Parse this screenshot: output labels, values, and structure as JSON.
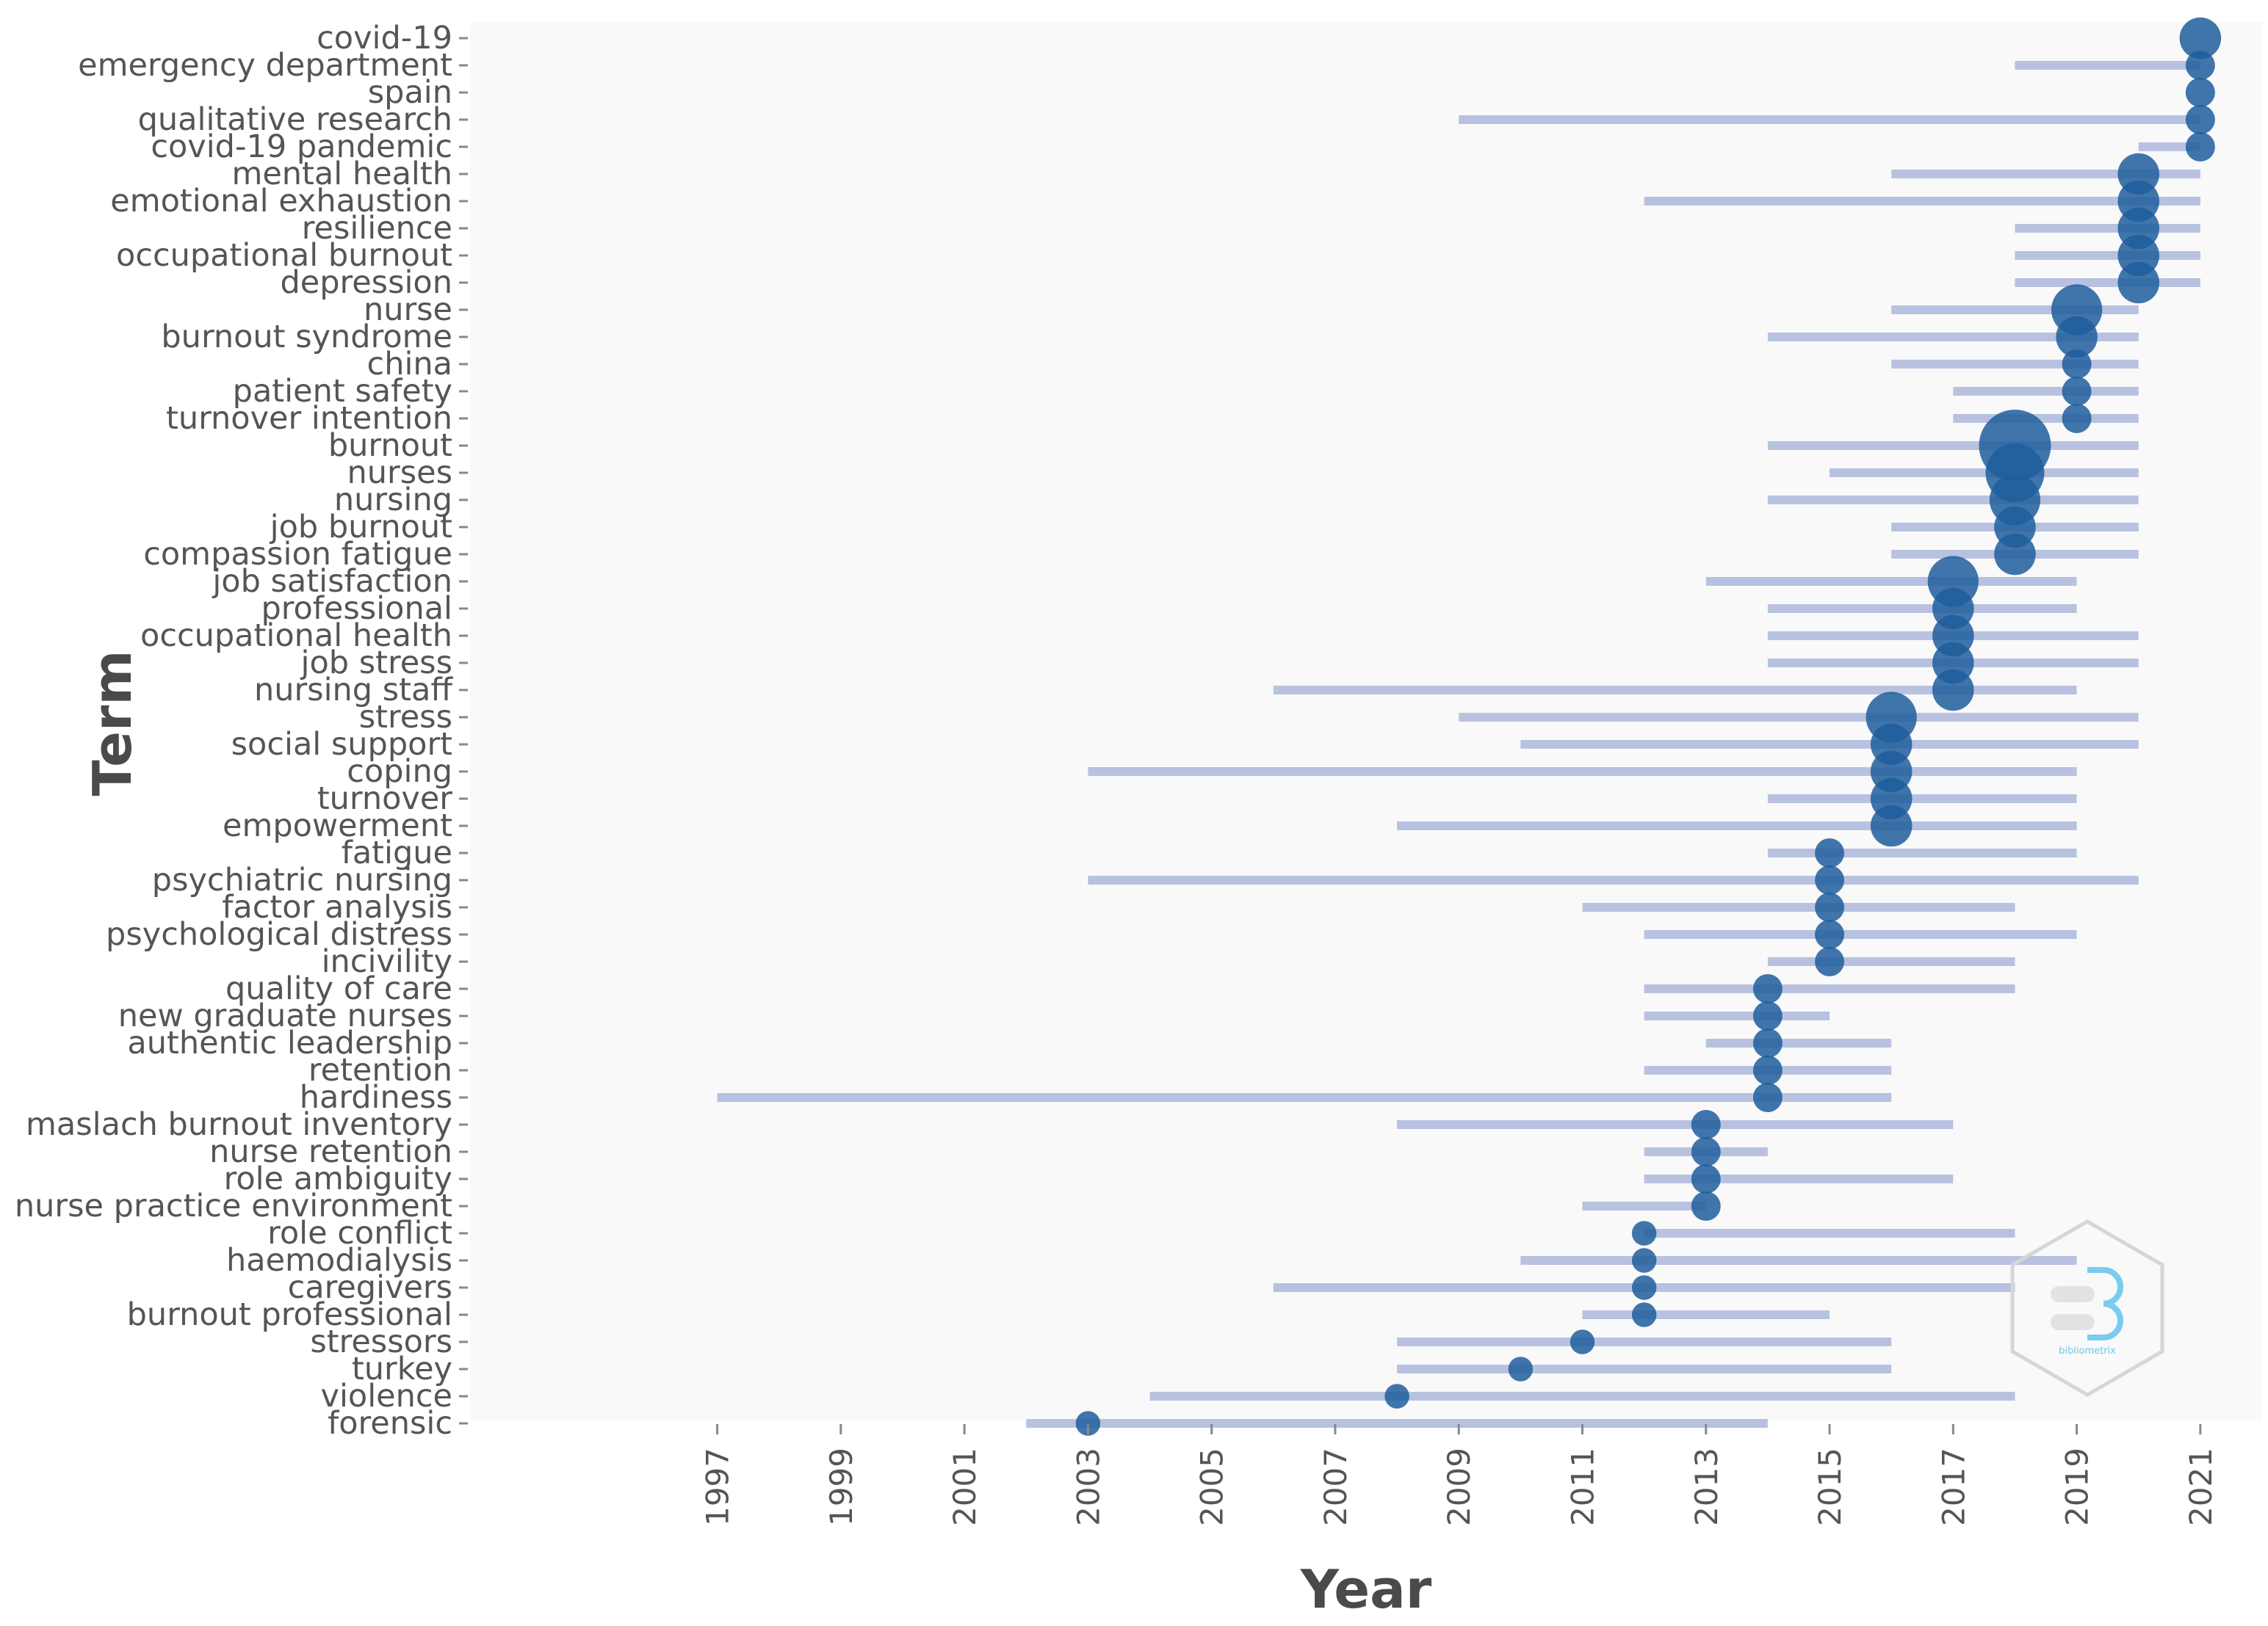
{
  "chart_data": {
    "type": "scatter",
    "title": "",
    "xlabel": "Year",
    "ylabel": "Term",
    "xlim": [
      1993,
      2022
    ],
    "x_ticks": [
      1997,
      1999,
      2001,
      2003,
      2005,
      2007,
      2009,
      2011,
      2013,
      2015,
      2017,
      2019,
      2021
    ],
    "grid": false,
    "legend": "none",
    "colors": {
      "bar": "#b8c2e0",
      "dot": "#1f5e9c",
      "panel": "#f9f9f9",
      "tick": "#888888"
    },
    "terms": [
      {
        "term": "covid-19",
        "start": 2021,
        "end": 2021,
        "peak": 2021,
        "size": 2
      },
      {
        "term": "emergency department",
        "start": 2018,
        "end": 2021,
        "peak": 2021,
        "size": 1
      },
      {
        "term": "spain",
        "start": 2021,
        "end": 2021,
        "peak": 2021,
        "size": 1
      },
      {
        "term": "qualitative research",
        "start": 2009,
        "end": 2021,
        "peak": 2021,
        "size": 1
      },
      {
        "term": "covid-19 pandemic",
        "start": 2020,
        "end": 2021,
        "peak": 2021,
        "size": 1
      },
      {
        "term": "mental health",
        "start": 2016,
        "end": 2021,
        "peak": 2020,
        "size": 2
      },
      {
        "term": "emotional exhaustion",
        "start": 2012,
        "end": 2021,
        "peak": 2020,
        "size": 2
      },
      {
        "term": "resilience",
        "start": 2018,
        "end": 2021,
        "peak": 2020,
        "size": 2
      },
      {
        "term": "occupational burnout",
        "start": 2018,
        "end": 2021,
        "peak": 2020,
        "size": 2
      },
      {
        "term": "depression",
        "start": 2018,
        "end": 2021,
        "peak": 2020,
        "size": 2
      },
      {
        "term": "nurse",
        "start": 2016,
        "end": 2020,
        "peak": 2019,
        "size": 3
      },
      {
        "term": "burnout syndrome",
        "start": 2014,
        "end": 2020,
        "peak": 2019,
        "size": 2
      },
      {
        "term": "china",
        "start": 2016,
        "end": 2020,
        "peak": 2019,
        "size": 1
      },
      {
        "term": "patient safety",
        "start": 2017,
        "end": 2020,
        "peak": 2019,
        "size": 1
      },
      {
        "term": "turnover intention",
        "start": 2017,
        "end": 2020,
        "peak": 2019,
        "size": 1
      },
      {
        "term": "burnout",
        "start": 2014,
        "end": 2020,
        "peak": 2018,
        "size": 6
      },
      {
        "term": "nurses",
        "start": 2015,
        "end": 2020,
        "peak": 2018,
        "size": 4
      },
      {
        "term": "nursing",
        "start": 2014,
        "end": 2020,
        "peak": 2018,
        "size": 3
      },
      {
        "term": "job burnout",
        "start": 2016,
        "end": 2020,
        "peak": 2018,
        "size": 2
      },
      {
        "term": "compassion fatigue",
        "start": 2016,
        "end": 2020,
        "peak": 2018,
        "size": 2
      },
      {
        "term": "job satisfaction",
        "start": 2013,
        "end": 2019,
        "peak": 2017,
        "size": 3
      },
      {
        "term": "professional",
        "start": 2014,
        "end": 2019,
        "peak": 2017,
        "size": 2
      },
      {
        "term": "occupational health",
        "start": 2014,
        "end": 2020,
        "peak": 2017,
        "size": 2
      },
      {
        "term": "job stress",
        "start": 2014,
        "end": 2020,
        "peak": 2017,
        "size": 2
      },
      {
        "term": "nursing staff",
        "start": 2006,
        "end": 2019,
        "peak": 2017,
        "size": 2
      },
      {
        "term": "stress",
        "start": 2009,
        "end": 2020,
        "peak": 2016,
        "size": 3
      },
      {
        "term": "social support",
        "start": 2010,
        "end": 2020,
        "peak": 2016,
        "size": 2
      },
      {
        "term": "coping",
        "start": 2003,
        "end": 2019,
        "peak": 2016,
        "size": 2
      },
      {
        "term": "turnover",
        "start": 2014,
        "end": 2019,
        "peak": 2016,
        "size": 2
      },
      {
        "term": "empowerment",
        "start": 2008,
        "end": 2019,
        "peak": 2016,
        "size": 2
      },
      {
        "term": "fatigue",
        "start": 2014,
        "end": 2019,
        "peak": 2015,
        "size": 1
      },
      {
        "term": "psychiatric nursing",
        "start": 2003,
        "end": 2020,
        "peak": 2015,
        "size": 1
      },
      {
        "term": "factor analysis",
        "start": 2011,
        "end": 2018,
        "peak": 2015,
        "size": 1
      },
      {
        "term": "psychological distress",
        "start": 2012,
        "end": 2019,
        "peak": 2015,
        "size": 1
      },
      {
        "term": "incivility",
        "start": 2014,
        "end": 2018,
        "peak": 2015,
        "size": 1
      },
      {
        "term": "quality of care",
        "start": 2012,
        "end": 2018,
        "peak": 2014,
        "size": 1
      },
      {
        "term": "new graduate nurses",
        "start": 2012,
        "end": 2015,
        "peak": 2014,
        "size": 1
      },
      {
        "term": "authentic leadership",
        "start": 2013,
        "end": 2016,
        "peak": 2014,
        "size": 1
      },
      {
        "term": "retention",
        "start": 2012,
        "end": 2016,
        "peak": 2014,
        "size": 1
      },
      {
        "term": "hardiness",
        "start": 1997,
        "end": 2016,
        "peak": 2014,
        "size": 1
      },
      {
        "term": "maslach burnout inventory",
        "start": 2008,
        "end": 2017,
        "peak": 2013,
        "size": 1
      },
      {
        "term": "nurse retention",
        "start": 2012,
        "end": 2014,
        "peak": 2013,
        "size": 1
      },
      {
        "term": "role ambiguity",
        "start": 2012,
        "end": 2017,
        "peak": 2013,
        "size": 1
      },
      {
        "term": "nurse practice environment",
        "start": 2011,
        "end": 2013,
        "peak": 2013,
        "size": 1
      },
      {
        "term": "role conflict",
        "start": 2012,
        "end": 2018,
        "peak": 2012,
        "size": 0.7
      },
      {
        "term": "haemodialysis",
        "start": 2010,
        "end": 2019,
        "peak": 2012,
        "size": 0.7
      },
      {
        "term": "caregivers",
        "start": 2006,
        "end": 2018,
        "peak": 2012,
        "size": 0.7
      },
      {
        "term": "burnout professional",
        "start": 2011,
        "end": 2015,
        "peak": 2012,
        "size": 0.7
      },
      {
        "term": "stressors",
        "start": 2008,
        "end": 2016,
        "peak": 2011,
        "size": 0.7
      },
      {
        "term": "turkey",
        "start": 2008,
        "end": 2016,
        "peak": 2010,
        "size": 0.7
      },
      {
        "term": "violence",
        "start": 2004,
        "end": 2018,
        "peak": 2008,
        "size": 0.7
      },
      {
        "term": "forensic",
        "start": 2002,
        "end": 2014,
        "peak": 2003,
        "size": 0.7
      }
    ]
  }
}
